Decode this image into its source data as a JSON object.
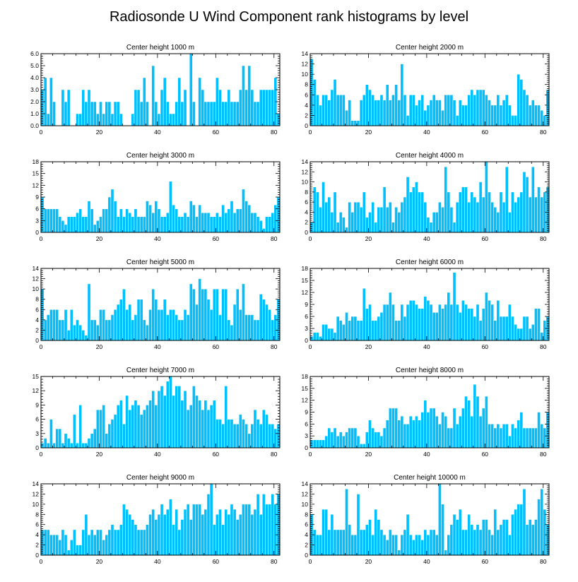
{
  "figure_title": "Radiosonde U Wind Component rank histograms by level",
  "colors": {
    "bar": "#00BFFF",
    "axis": "#000000",
    "background": "#ffffff"
  },
  "chart_data": [
    {
      "type": "bar",
      "title": "Center height 1000 m",
      "xlim": [
        0,
        82
      ],
      "ylim": [
        0,
        6
      ],
      "xticks": [
        0,
        20,
        40,
        60,
        80
      ],
      "yticks": [
        "0.0",
        "1.0",
        "2.0",
        "3.0",
        "4.0",
        "5.0",
        "6.0"
      ],
      "values": [
        3,
        4,
        1,
        4,
        2,
        0,
        0,
        3,
        2,
        3,
        0,
        0,
        1,
        1,
        3,
        2,
        3,
        2,
        2,
        1,
        2,
        1,
        2,
        2,
        1,
        2,
        2,
        1,
        0,
        0,
        0,
        1,
        3,
        3,
        2,
        4,
        2,
        0,
        5,
        2,
        1,
        3,
        4,
        2,
        1,
        1,
        2,
        4,
        2,
        3,
        0,
        6,
        2,
        0,
        4,
        3,
        2,
        2,
        2,
        2,
        4,
        3,
        2,
        2,
        3,
        2,
        2,
        2,
        3,
        5,
        3,
        5,
        3,
        2,
        2,
        3,
        3,
        3,
        3,
        3,
        4,
        1
      ]
    },
    {
      "type": "bar",
      "title": "Center height 2000 m",
      "xlim": [
        0,
        82
      ],
      "ylim": [
        0,
        14
      ],
      "xticks": [
        0,
        20,
        40,
        60,
        80
      ],
      "yticks": [
        "0",
        "2",
        "4",
        "6",
        "8",
        "10",
        "12",
        "14"
      ],
      "values": [
        13,
        9,
        6,
        4,
        6,
        6,
        5,
        7,
        9,
        6,
        6,
        6,
        3,
        5,
        1,
        1,
        1,
        5,
        6,
        8,
        7,
        6,
        5,
        5,
        6,
        5,
        8,
        5,
        6,
        8,
        5,
        12,
        6,
        2,
        6,
        6,
        4,
        5,
        6,
        3,
        4,
        5,
        6,
        5,
        5,
        3,
        6,
        6,
        6,
        5,
        2,
        5,
        4,
        4,
        6,
        7,
        6,
        7,
        7,
        7,
        6,
        5,
        4,
        4,
        6,
        4,
        5,
        6,
        4,
        2,
        2,
        10,
        9,
        7,
        6,
        4,
        5,
        4,
        4,
        3,
        2,
        7
      ]
    },
    {
      "type": "bar",
      "title": "Center height 3000 m",
      "xlim": [
        0,
        82
      ],
      "ylim": [
        0,
        18
      ],
      "xticks": [
        0,
        20,
        40,
        60,
        80
      ],
      "yticks": [
        "0",
        "3",
        "6",
        "9",
        "12",
        "15",
        "18"
      ],
      "values": [
        9,
        6,
        6,
        6,
        6,
        6,
        4,
        3,
        2,
        4,
        4,
        4,
        5,
        6,
        4,
        4,
        8,
        6,
        2,
        3,
        4,
        6,
        6,
        9,
        11,
        8,
        4,
        6,
        4,
        6,
        5,
        4,
        6,
        4,
        4,
        4,
        8,
        7,
        5,
        8,
        6,
        4,
        4,
        5,
        13,
        7,
        6,
        4,
        4,
        5,
        4,
        8,
        7,
        4,
        7,
        5,
        5,
        5,
        4,
        4,
        5,
        4,
        7,
        5,
        6,
        8,
        5,
        6,
        6,
        11,
        8,
        7,
        5,
        5,
        4,
        3,
        1,
        4,
        4,
        5,
        7,
        9
      ]
    },
    {
      "type": "bar",
      "title": "Center height 4000 m",
      "xlim": [
        0,
        82
      ],
      "ylim": [
        0,
        14
      ],
      "xticks": [
        0,
        20,
        40,
        60,
        80
      ],
      "yticks": [
        "0",
        "2",
        "4",
        "6",
        "8",
        "10",
        "12",
        "14"
      ],
      "values": [
        2,
        9,
        8,
        5,
        10,
        6,
        7,
        4,
        8,
        2,
        4,
        3,
        1,
        6,
        4,
        6,
        6,
        5,
        8,
        3,
        4,
        6,
        2,
        5,
        5,
        9,
        5,
        6,
        2,
        5,
        4,
        6,
        7,
        11,
        8,
        9,
        10,
        8,
        8,
        6,
        3,
        2,
        4,
        4,
        6,
        5,
        13,
        8,
        5,
        2,
        6,
        8,
        9,
        9,
        6,
        8,
        7,
        6,
        10,
        7,
        14,
        8,
        6,
        5,
        4,
        8,
        6,
        13,
        4,
        8,
        6,
        7,
        8,
        12,
        11,
        7,
        13,
        7,
        9,
        7,
        8,
        9
      ]
    },
    {
      "type": "bar",
      "title": "Center height 5000 m",
      "xlim": [
        0,
        82
      ],
      "ylim": [
        0,
        14
      ],
      "xticks": [
        0,
        20,
        40,
        60,
        80
      ],
      "yticks": [
        "0",
        "2",
        "4",
        "6",
        "8",
        "10",
        "12",
        "14"
      ],
      "values": [
        10,
        4,
        5,
        6,
        6,
        6,
        4,
        4,
        6,
        2,
        6,
        3,
        4,
        3,
        2,
        1,
        11,
        4,
        4,
        3,
        6,
        6,
        4,
        4,
        5,
        6,
        7,
        8,
        10,
        6,
        7,
        4,
        5,
        8,
        8,
        4,
        3,
        6,
        10,
        8,
        6,
        6,
        8,
        5,
        6,
        6,
        5,
        4,
        4,
        6,
        5,
        11,
        10,
        7,
        12,
        10,
        10,
        8,
        6,
        10,
        10,
        5,
        10,
        10,
        4,
        3,
        7,
        10,
        6,
        11,
        5,
        5,
        5,
        4,
        4,
        9,
        8,
        7,
        6,
        4,
        5,
        8
      ]
    },
    {
      "type": "bar",
      "title": "Center height 6000 m",
      "xlim": [
        0,
        82
      ],
      "ylim": [
        0,
        18
      ],
      "xticks": [
        0,
        20,
        40,
        60,
        80
      ],
      "yticks": [
        "0",
        "3",
        "6",
        "9",
        "12",
        "15",
        "18"
      ],
      "values": [
        1,
        2,
        2,
        1,
        4,
        4,
        3,
        3,
        2,
        6,
        5,
        4,
        7,
        5,
        6,
        6,
        5,
        5,
        13,
        8,
        9,
        5,
        5,
        6,
        7,
        9,
        9,
        12,
        9,
        5,
        5,
        9,
        6,
        9,
        10,
        10,
        9,
        8,
        8,
        11,
        10,
        9,
        7,
        7,
        9,
        8,
        9,
        12,
        9,
        17,
        9,
        7,
        10,
        9,
        8,
        8,
        6,
        9,
        5,
        8,
        12,
        10,
        9,
        5,
        10,
        6,
        6,
        6,
        9,
        6,
        4,
        3,
        3,
        6,
        6,
        3,
        4,
        8,
        8,
        2,
        5,
        6
      ]
    },
    {
      "type": "bar",
      "title": "Center height 7000 m",
      "xlim": [
        0,
        82
      ],
      "ylim": [
        0,
        15
      ],
      "xticks": [
        0,
        20,
        40,
        60,
        80
      ],
      "yticks": [
        "0",
        "3",
        "6",
        "9",
        "12",
        "15"
      ],
      "values": [
        1,
        2,
        1,
        6,
        1,
        4,
        4,
        1,
        3,
        2,
        1,
        7,
        1,
        9,
        1,
        1,
        2,
        3,
        4,
        8,
        8,
        9,
        3,
        5,
        6,
        7,
        9,
        10,
        5,
        11,
        8,
        9,
        10,
        9,
        7,
        8,
        9,
        10,
        12,
        9,
        12,
        13,
        11,
        14,
        15,
        11,
        13,
        13,
        10,
        12,
        8,
        9,
        13,
        11,
        10,
        8,
        10,
        8,
        9,
        10,
        6,
        6,
        5,
        13,
        6,
        6,
        5,
        5,
        7,
        6,
        5,
        3,
        5,
        8,
        6,
        5,
        8,
        7,
        5,
        5,
        4,
        5
      ]
    },
    {
      "type": "bar",
      "title": "Center height 8000 m",
      "xlim": [
        0,
        82
      ],
      "ylim": [
        0,
        18
      ],
      "xticks": [
        0,
        20,
        40,
        60,
        80
      ],
      "yticks": [
        "0",
        "3",
        "6",
        "9",
        "12",
        "15",
        "18"
      ],
      "values": [
        2,
        2,
        2,
        2,
        2,
        3,
        5,
        4,
        5,
        3,
        4,
        3,
        4,
        5,
        5,
        5,
        3,
        1,
        1,
        4,
        7,
        5,
        4,
        4,
        3,
        5,
        7,
        10,
        10,
        10,
        7,
        8,
        6,
        6,
        8,
        7,
        8,
        7,
        9,
        12,
        9,
        10,
        10,
        8,
        6,
        9,
        8,
        5,
        5,
        10,
        6,
        8,
        10,
        13,
        12,
        8,
        16,
        13,
        8,
        10,
        13,
        6,
        6,
        5,
        6,
        5,
        6,
        6,
        3,
        6,
        5,
        7,
        9,
        5,
        5,
        5,
        5,
        5,
        9,
        6,
        5,
        9
      ]
    },
    {
      "type": "bar",
      "title": "Center height 9000 m",
      "xlim": [
        0,
        82
      ],
      "ylim": [
        0,
        14
      ],
      "xticks": [
        0,
        20,
        40,
        60,
        80
      ],
      "yticks": [
        "0",
        "2",
        "4",
        "6",
        "8",
        "10",
        "12",
        "14"
      ],
      "values": [
        5,
        5,
        5,
        4,
        4,
        4,
        3,
        5,
        4,
        1,
        3,
        5,
        2,
        2,
        5,
        8,
        4,
        5,
        4,
        5,
        5,
        3,
        4,
        5,
        6,
        5,
        5,
        6,
        10,
        9,
        8,
        7,
        6,
        5,
        5,
        5,
        6,
        8,
        9,
        7,
        8,
        10,
        8,
        9,
        11,
        6,
        9,
        5,
        7,
        9,
        10,
        7,
        10,
        10,
        10,
        8,
        9,
        12,
        14,
        6,
        8,
        9,
        6,
        9,
        8,
        10,
        9,
        7,
        8,
        10,
        10,
        10,
        8,
        9,
        12,
        8,
        12,
        10,
        10,
        12,
        10,
        12
      ]
    },
    {
      "type": "bar",
      "title": "Center height 10000 m",
      "xlim": [
        0,
        82
      ],
      "ylim": [
        0,
        14
      ],
      "xticks": [
        0,
        20,
        40,
        60,
        80
      ],
      "yticks": [
        "0",
        "2",
        "4",
        "6",
        "8",
        "10",
        "12",
        "14"
      ],
      "values": [
        8,
        5,
        4,
        4,
        9,
        9,
        5,
        8,
        5,
        5,
        5,
        5,
        13,
        6,
        4,
        4,
        12,
        5,
        5,
        6,
        7,
        4,
        9,
        7,
        5,
        4,
        3,
        5,
        4,
        4,
        1,
        4,
        5,
        8,
        4,
        3,
        4,
        4,
        3,
        5,
        4,
        5,
        5,
        4,
        14,
        10,
        1,
        4,
        6,
        8,
        7,
        9,
        5,
        5,
        8,
        6,
        5,
        6,
        5,
        7,
        7,
        5,
        4,
        9,
        5,
        6,
        7,
        7,
        4,
        8,
        9,
        10,
        10,
        13,
        6,
        7,
        6,
        7,
        11,
        13,
        9,
        6
      ]
    }
  ]
}
